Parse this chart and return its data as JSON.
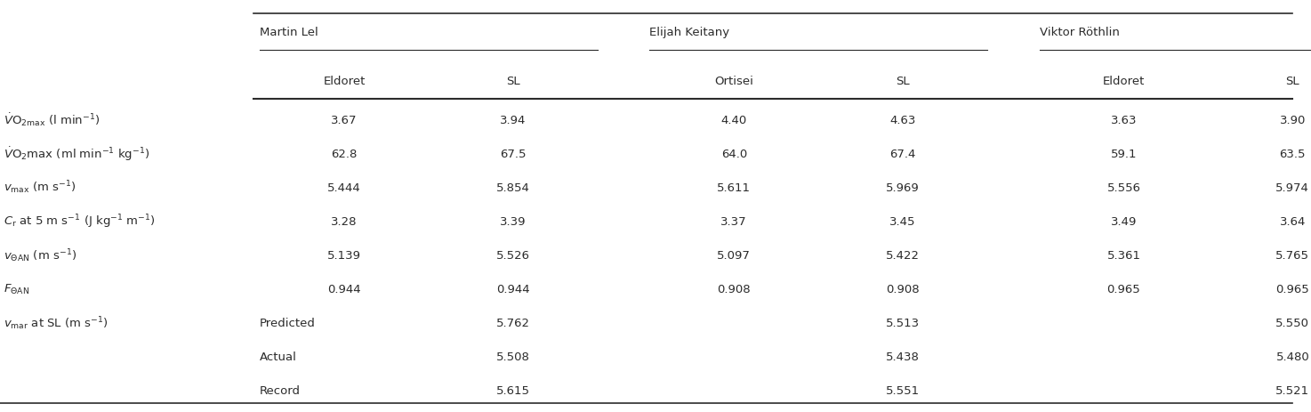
{
  "athletes": [
    "Martin Lel",
    "Elijah Keitany",
    "Viktor Röthlin"
  ],
  "sub_cols_flat": [
    "Eldoret",
    "SL",
    "Ortisei",
    "SL",
    "Eldoret",
    "SL"
  ],
  "row_labels_raw": [
    "$\\dot{V}$O$_{2\\mathrm{max}}$ (l min$^{-1}$)",
    "$\\dot{V}$O$_{2}$max (ml min$^{-1}$ kg$^{-1}$)",
    "$v_{\\mathrm{max}}$ (m s$^{-1}$)",
    "$C_{\\mathrm{r}}$ at 5 m s$^{-1}$ (J kg$^{-1}$ m$^{-1}$)",
    "$v_{\\Theta \\mathrm{AN}}$ (m s$^{-1}$)",
    "$F_{\\Theta \\mathrm{AN}}$",
    "$v_{\\mathrm{mar}}$ at SL (m s$^{-1}$)"
  ],
  "data_rows": [
    [
      "3.67",
      "3.94",
      "4.40",
      "4.63",
      "3.63",
      "3.90"
    ],
    [
      "62.8",
      "67.5",
      "64.0",
      "67.4",
      "59.1",
      "63.5"
    ],
    [
      "5.444",
      "5.854",
      "5.611",
      "5.969",
      "5.556",
      "5.974"
    ],
    [
      "3.28",
      "3.39",
      "3.37",
      "3.45",
      "3.49",
      "3.64"
    ],
    [
      "5.139",
      "5.526",
      "5.097",
      "5.422",
      "5.361",
      "5.765"
    ],
    [
      "0.944",
      "0.944",
      "0.908",
      "0.908",
      "0.965",
      "0.965"
    ],
    [
      "Predicted",
      "5.762",
      "",
      "5.513",
      "",
      "5.550"
    ],
    [
      "Actual",
      "5.508",
      "",
      "5.438",
      "",
      "5.480"
    ],
    [
      "Record",
      "5.615",
      "",
      "5.551",
      "",
      "5.521"
    ]
  ],
  "bg_color": "#ffffff",
  "text_color": "#2b2b2b",
  "font_size": 9.5
}
